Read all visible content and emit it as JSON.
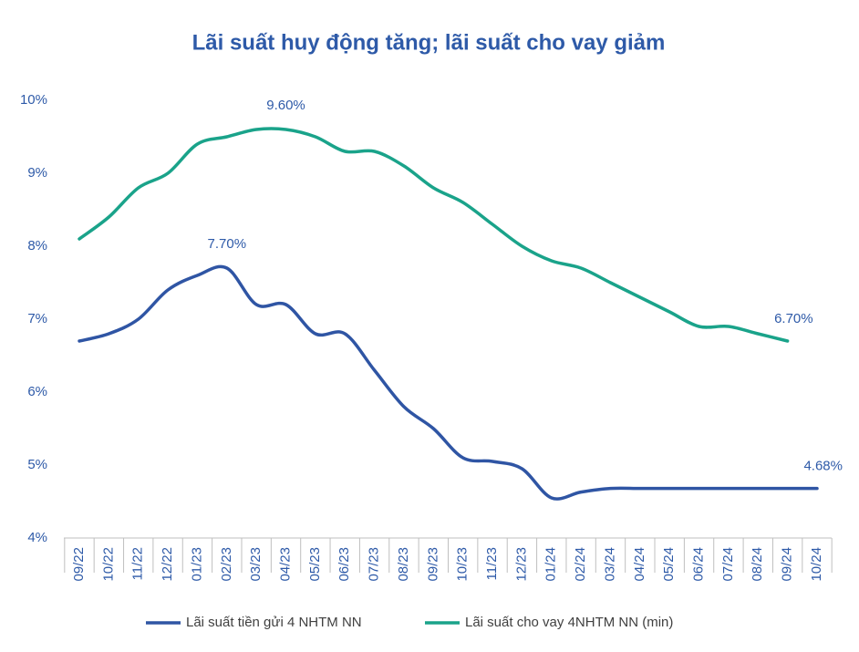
{
  "chart_data": {
    "type": "line",
    "title": "Lãi suất huy động tăng; lãi suất cho vay giảm",
    "categories": [
      "09/22",
      "10/22",
      "11/22",
      "12/22",
      "01/23",
      "02/23",
      "03/23",
      "04/23",
      "05/23",
      "06/23",
      "07/23",
      "08/23",
      "09/23",
      "10/23",
      "11/23",
      "12/23",
      "01/24",
      "02/24",
      "03/24",
      "04/24",
      "05/24",
      "06/24",
      "07/24",
      "08/24",
      "09/24",
      "10/24"
    ],
    "series": [
      {
        "name": "Lãi suất tiền gửi 4 NHTM NN",
        "color": "#2f55a4",
        "values": [
          6.7,
          6.8,
          7.0,
          7.4,
          7.6,
          7.7,
          7.2,
          7.2,
          6.8,
          6.8,
          6.3,
          5.8,
          5.5,
          5.1,
          5.05,
          4.95,
          4.55,
          4.63,
          4.68,
          4.68,
          4.68,
          4.68,
          4.68,
          4.68,
          4.68,
          4.68
        ],
        "value_labels": [
          null,
          null,
          null,
          null,
          null,
          "7.70%",
          null,
          null,
          null,
          null,
          null,
          null,
          null,
          null,
          null,
          null,
          null,
          null,
          null,
          null,
          null,
          null,
          null,
          null,
          null,
          "4.68%"
        ]
      },
      {
        "name": "Lãi suất cho vay 4NHTM NN (min)",
        "color": "#1aa38a",
        "values": [
          8.1,
          8.4,
          8.8,
          9.0,
          9.4,
          9.5,
          9.6,
          9.6,
          9.5,
          9.3,
          9.3,
          9.1,
          8.8,
          8.6,
          8.3,
          8.0,
          7.8,
          7.7,
          7.5,
          7.3,
          7.1,
          6.9,
          6.9,
          6.8,
          6.7,
          null
        ],
        "value_labels": [
          null,
          null,
          null,
          null,
          null,
          null,
          null,
          "9.60%",
          null,
          null,
          null,
          null,
          null,
          null,
          null,
          null,
          null,
          null,
          null,
          null,
          null,
          null,
          null,
          null,
          "6.70%",
          null
        ]
      }
    ],
    "ylim": [
      4,
      10
    ],
    "yticks": [
      {
        "value": 4,
        "label": "4%"
      },
      {
        "value": 5,
        "label": "5%"
      },
      {
        "value": 6,
        "label": "6%"
      },
      {
        "value": 7,
        "label": "7%"
      },
      {
        "value": 8,
        "label": "8%"
      },
      {
        "value": 9,
        "label": "9%"
      },
      {
        "value": 10,
        "label": "10%"
      }
    ],
    "grid": false,
    "legend": "bottom"
  }
}
